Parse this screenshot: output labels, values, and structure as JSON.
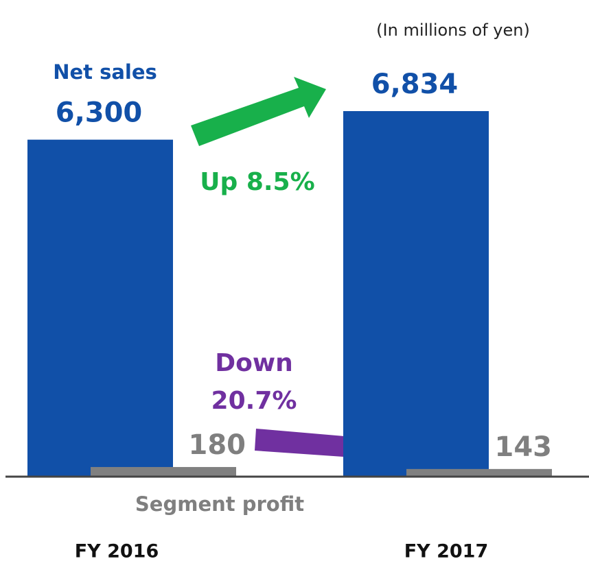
{
  "chart_data": {
    "type": "bar",
    "unit_note": "(In millions of yen)",
    "categories": [
      "FY 2016",
      "FY 2017"
    ],
    "series": [
      {
        "name": "Net sales",
        "color": "#1150a8",
        "values": [
          6300,
          6834
        ],
        "value_labels": [
          "6,300",
          "6,834"
        ]
      },
      {
        "name": "Segment profit",
        "color": "#808080",
        "values": [
          180,
          143
        ],
        "value_labels": [
          "180",
          "143"
        ]
      }
    ],
    "annotations": [
      {
        "text": "Up 8.5%",
        "color": "#18b04b"
      },
      {
        "text": "Down 20.7%",
        "color": "#7030a0"
      }
    ]
  }
}
